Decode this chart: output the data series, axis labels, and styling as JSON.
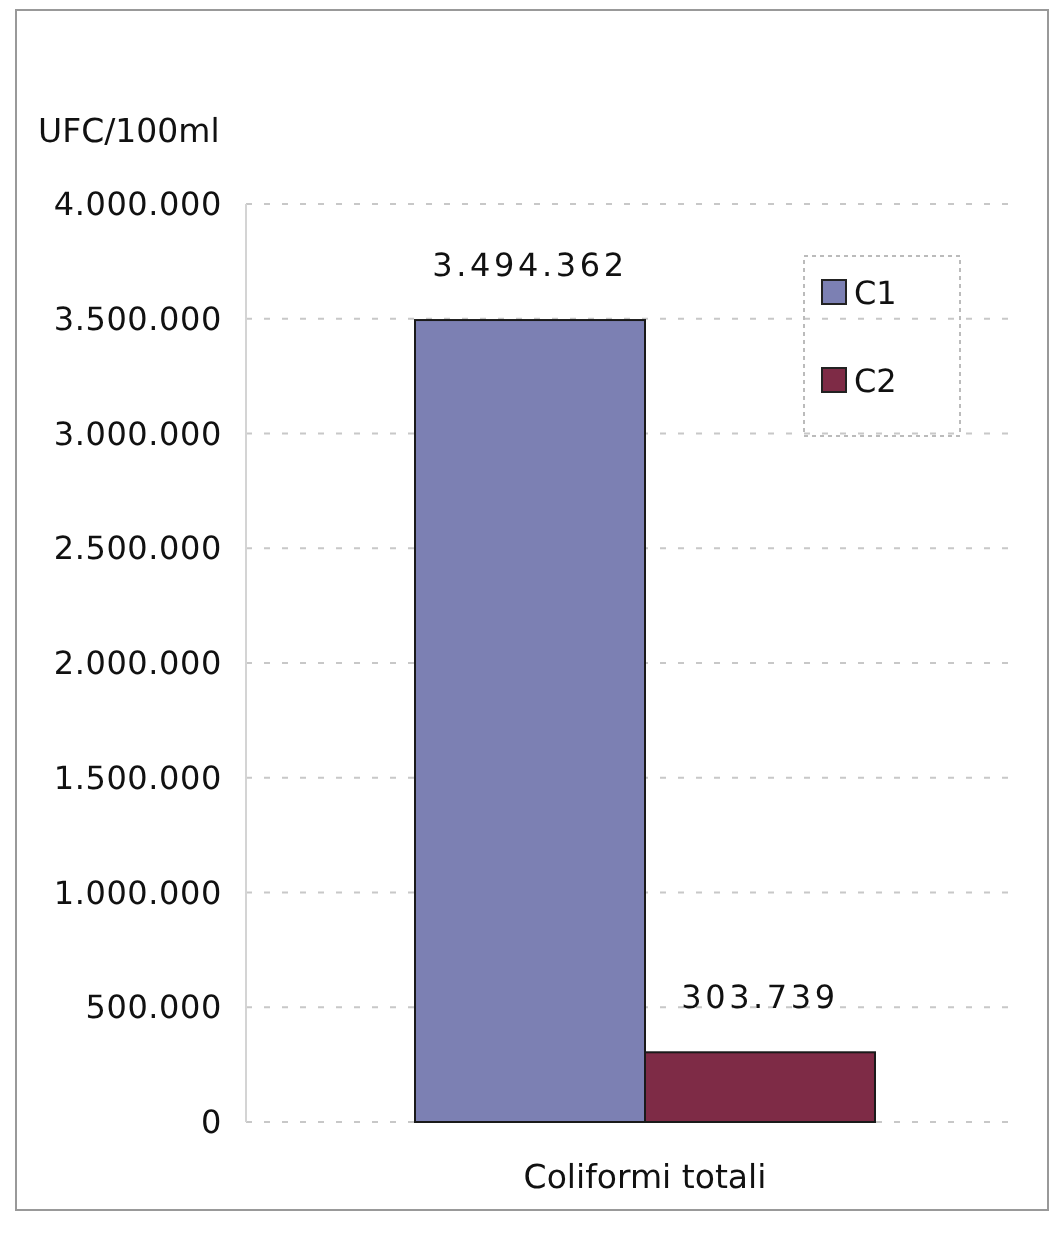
{
  "chart_data": {
    "type": "bar",
    "ylabel": "UFC/100ml",
    "categories": [
      "Coliformi totali"
    ],
    "series": [
      {
        "name": "C1",
        "color": "#7c80b3",
        "values": [
          3494362
        ],
        "value_labels": [
          "3.494.362"
        ]
      },
      {
        "name": "C2",
        "color": "#7e2b46",
        "values": [
          303739
        ],
        "value_labels": [
          "303.739"
        ]
      }
    ],
    "ylim": [
      0,
      4000000
    ],
    "yticks": [
      {
        "value": 0,
        "label": "0"
      },
      {
        "value": 500000,
        "label": "500.000"
      },
      {
        "value": 1000000,
        "label": "1.000.000"
      },
      {
        "value": 1500000,
        "label": "1.500.000"
      },
      {
        "value": 2000000,
        "label": "2.000.000"
      },
      {
        "value": 2500000,
        "label": "2.500.000"
      },
      {
        "value": 3000000,
        "label": "3.000.000"
      },
      {
        "value": 3500000,
        "label": "3.500.000"
      },
      {
        "value": 4000000,
        "label": "4.000.000"
      }
    ],
    "grid": "y",
    "legend": "top right"
  }
}
